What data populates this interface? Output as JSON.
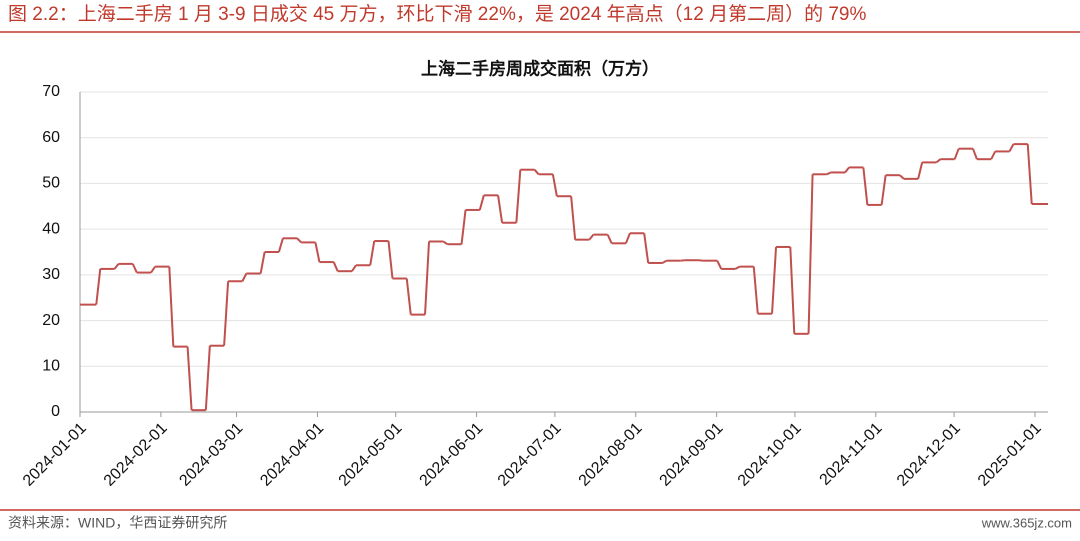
{
  "header": "图 2.2：上海二手房 1 月 3-9 日成交 45 万方，环比下滑 22%，是 2024 年高点（12 月第二周）的 79%",
  "source": "资料来源：WIND，华西证券研究所",
  "watermark": "www.365jz.com",
  "chart_data": {
    "type": "step",
    "title": "上海二手房周成交面积（万方）",
    "x": [
      "2024-01-01",
      "2024-01-08",
      "2024-01-15",
      "2024-01-22",
      "2024-01-29",
      "2024-02-05",
      "2024-02-12",
      "2024-02-19",
      "2024-02-26",
      "2024-03-04",
      "2024-03-11",
      "2024-03-18",
      "2024-03-25",
      "2024-04-01",
      "2024-04-08",
      "2024-04-15",
      "2024-04-22",
      "2024-04-29",
      "2024-05-06",
      "2024-05-13",
      "2024-05-20",
      "2024-05-27",
      "2024-06-03",
      "2024-06-10",
      "2024-06-17",
      "2024-06-24",
      "2024-07-01",
      "2024-07-08",
      "2024-07-15",
      "2024-07-22",
      "2024-07-29",
      "2024-08-05",
      "2024-08-12",
      "2024-08-19",
      "2024-08-26",
      "2024-09-02",
      "2024-09-09",
      "2024-09-16",
      "2024-09-23",
      "2024-09-30",
      "2024-10-07",
      "2024-10-14",
      "2024-10-21",
      "2024-10-28",
      "2024-11-04",
      "2024-11-11",
      "2024-11-18",
      "2024-11-25",
      "2024-12-02",
      "2024-12-09",
      "2024-12-16",
      "2024-12-23",
      "2024-12-30"
    ],
    "series": [
      {
        "name": "上海二手房周成交面积",
        "color": "#c0504d",
        "values": [
          23.5,
          31.3,
          32.4,
          30.5,
          31.8,
          14.3,
          0.4,
          14.5,
          28.6,
          30.3,
          35,
          38,
          37.1,
          32.8,
          30.8,
          32.1,
          37.4,
          29.2,
          21.3,
          37.3,
          36.7,
          44.2,
          47.4,
          41.4,
          53,
          52,
          47.2,
          37.7,
          38.8,
          36.9,
          39.1,
          32.6,
          33.1,
          33.2,
          33.1,
          31.3,
          31.8,
          21.5,
          36.1,
          17.1,
          52,
          52.4,
          53.5,
          45.3,
          51.8,
          51,
          54.6,
          55.3,
          57.6,
          55.3,
          57,
          58.6,
          45.5
        ]
      }
    ],
    "xlim": [
      "2024-01-01",
      "2025-01-06"
    ],
    "xticks": [
      "2024-01-01",
      "2024-02-01",
      "2024-03-01",
      "2024-04-01",
      "2024-05-01",
      "2024-06-01",
      "2024-07-01",
      "2024-08-01",
      "2024-09-01",
      "2024-10-01",
      "2024-11-01",
      "2024-12-01",
      "2025-01-01"
    ],
    "ylim": [
      0,
      70
    ],
    "yticks": [
      0,
      10,
      20,
      30,
      40,
      50,
      60,
      70
    ],
    "grid": true
  }
}
